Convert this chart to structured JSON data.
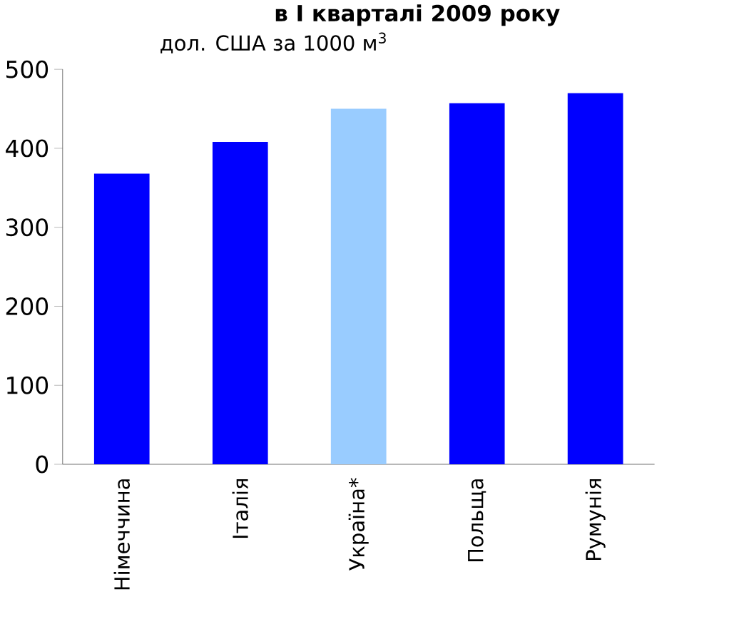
{
  "chart_data": {
    "type": "bar",
    "title": "в І кварталі 2009 року",
    "subtitle": "дол. США за 1000 м$^{3}$",
    "categories": [
      "Німеччина",
      "Італія",
      "Україна*",
      "Польща",
      "Румунія"
    ],
    "values": [
      368,
      408,
      450,
      457,
      470
    ],
    "colors": [
      "#0000ff",
      "#0000ff",
      "#99ccff",
      "#0000ff",
      "#0000ff"
    ],
    "ylim": [
      0,
      500
    ],
    "yticks": [
      0,
      100,
      200,
      300,
      400,
      500
    ],
    "grid": false
  }
}
